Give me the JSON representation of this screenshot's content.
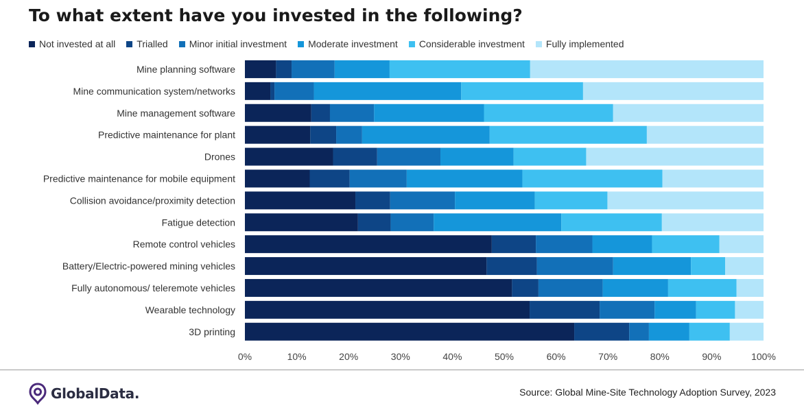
{
  "brand": {
    "name": "GlobalData."
  },
  "source": "Source: Global Mine-Site Technology Adoption Survey, 2023",
  "chart_data": {
    "type": "bar",
    "orientation": "horizontal",
    "stacked": true,
    "title": "To what extent have you invested in the following?",
    "xlabel": "",
    "ylabel": "",
    "xlim": [
      0,
      100
    ],
    "x_ticks": [
      "0%",
      "10%",
      "20%",
      "30%",
      "40%",
      "50%",
      "60%",
      "70%",
      "80%",
      "90%",
      "100%"
    ],
    "legend_position": "top",
    "grid": false,
    "categories": [
      "Mine planning software",
      "Mine communication system/networks",
      "Mine management software",
      "Predictive maintenance for plant",
      "Drones",
      "Predictive maintenance for mobile equipment",
      "Collision avoidance/proximity detection",
      "Fatigue detection",
      "Remote control vehicles",
      "Battery/Electric-powered mining vehicles",
      "Fully autonomous/ teleremote vehicles",
      "Wearable technology",
      "3D printing"
    ],
    "series": [
      {
        "name": "Not invested at all",
        "color": "#0b2559",
        "values": [
          6.0,
          4.9,
          12.8,
          12.6,
          17.0,
          12.5,
          21.3,
          21.8,
          47.6,
          46.6,
          51.5,
          54.9,
          63.5
        ]
      },
      {
        "name": "Trialled",
        "color": "#0e4586",
        "values": [
          3.0,
          0.8,
          3.6,
          5.0,
          8.5,
          7.7,
          6.7,
          6.3,
          8.5,
          9.7,
          5.1,
          13.5,
          10.6
        ]
      },
      {
        "name": "Minor initial investment",
        "color": "#1270b8",
        "values": [
          8.3,
          7.6,
          8.5,
          5.0,
          12.2,
          11.0,
          12.5,
          8.3,
          10.9,
          14.7,
          12.4,
          10.6,
          3.8
        ]
      },
      {
        "name": "Moderate investment",
        "color": "#1596da",
        "values": [
          10.6,
          28.4,
          21.2,
          24.6,
          14.1,
          22.3,
          15.4,
          24.6,
          11.5,
          15.0,
          12.6,
          8.0,
          7.8
        ]
      },
      {
        "name": "Considerable investment",
        "color": "#3ec0f1",
        "values": [
          27.1,
          23.5,
          24.9,
          30.3,
          14.0,
          27.0,
          14.0,
          19.4,
          13.0,
          6.6,
          13.2,
          7.5,
          7.8
        ]
      },
      {
        "name": "Fully implemented",
        "color": "#b3e5fa",
        "values": [
          45.0,
          34.8,
          29.0,
          22.5,
          34.2,
          19.5,
          30.1,
          19.6,
          8.5,
          7.4,
          5.2,
          5.5,
          6.5
        ]
      }
    ]
  }
}
